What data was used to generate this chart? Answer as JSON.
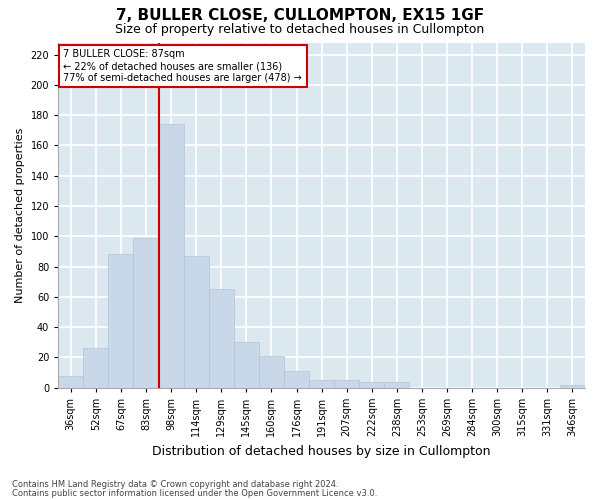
{
  "title": "7, BULLER CLOSE, CULLOMPTON, EX15 1GF",
  "subtitle": "Size of property relative to detached houses in Cullompton",
  "xlabel": "Distribution of detached houses by size in Cullompton",
  "ylabel": "Number of detached properties",
  "categories": [
    "36sqm",
    "52sqm",
    "67sqm",
    "83sqm",
    "98sqm",
    "114sqm",
    "129sqm",
    "145sqm",
    "160sqm",
    "176sqm",
    "191sqm",
    "207sqm",
    "222sqm",
    "238sqm",
    "253sqm",
    "269sqm",
    "284sqm",
    "300sqm",
    "315sqm",
    "331sqm",
    "346sqm"
  ],
  "values": [
    8,
    26,
    88,
    99,
    174,
    87,
    65,
    30,
    21,
    11,
    5,
    5,
    4,
    4,
    0,
    0,
    0,
    0,
    0,
    0,
    2
  ],
  "bar_color": "#c8d8e8",
  "bar_edge_color": "#b0c5d8",
  "vline_x": 4.0,
  "vline_color": "#cc0000",
  "annotation_text": "7 BULLER CLOSE: 87sqm\n← 22% of detached houses are smaller (136)\n77% of semi-detached houses are larger (478) →",
  "annotation_box_color": "white",
  "annotation_box_edge_color": "#cc0000",
  "ylim": [
    0,
    228
  ],
  "yticks": [
    0,
    20,
    40,
    60,
    80,
    100,
    120,
    140,
    160,
    180,
    200,
    220
  ],
  "background_color": "#dce8f0",
  "grid_color": "white",
  "footer_line1": "Contains HM Land Registry data © Crown copyright and database right 2024.",
  "footer_line2": "Contains public sector information licensed under the Open Government Licence v3.0.",
  "title_fontsize": 11,
  "subtitle_fontsize": 9,
  "xlabel_fontsize": 9,
  "ylabel_fontsize": 8,
  "annot_fontsize": 7,
  "tick_fontsize": 7
}
